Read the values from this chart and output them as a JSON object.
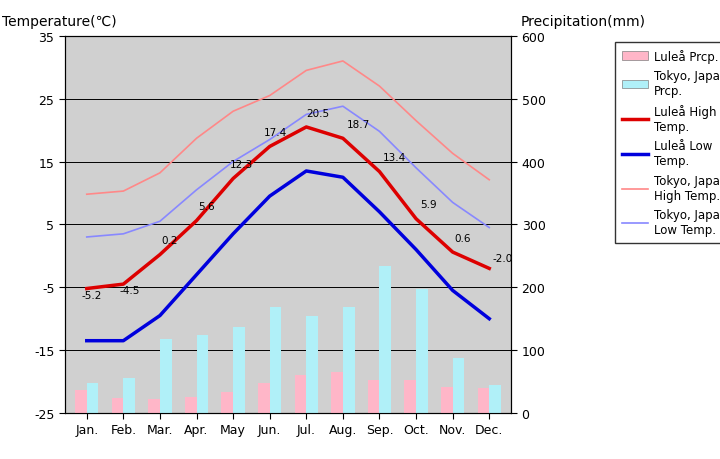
{
  "months": [
    "Jan.",
    "Feb.",
    "Mar.",
    "Apr.",
    "May",
    "Jun.",
    "Jul.",
    "Aug.",
    "Sep.",
    "Oct.",
    "Nov.",
    "Dec."
  ],
  "lulea_high": [
    -5.2,
    -4.5,
    0.2,
    5.6,
    12.3,
    17.4,
    20.5,
    18.7,
    13.4,
    5.9,
    0.6,
    -2.0
  ],
  "lulea_low": [
    -13.5,
    -13.5,
    -9.5,
    -3.0,
    3.5,
    9.5,
    13.5,
    12.5,
    7.0,
    1.0,
    -5.5,
    -10.0
  ],
  "tokyo_high": [
    9.8,
    10.3,
    13.2,
    18.7,
    23.0,
    25.5,
    29.5,
    31.0,
    27.0,
    21.5,
    16.3,
    12.1
  ],
  "tokyo_low": [
    3.0,
    3.5,
    5.5,
    10.5,
    15.0,
    18.5,
    22.5,
    23.8,
    19.8,
    14.0,
    8.5,
    4.5
  ],
  "lulea_prcp": [
    37,
    24,
    22,
    25,
    33,
    48,
    60,
    66,
    53,
    52,
    42,
    40
  ],
  "tokyo_prcp": [
    47,
    56,
    117,
    124,
    137,
    168,
    154,
    168,
    234,
    197,
    88,
    44
  ],
  "temp_ylim": [
    -25,
    35
  ],
  "prcp_ylim": [
    0,
    600
  ],
  "lulea_high_color": "#dd0000",
  "lulea_low_color": "#0000dd",
  "tokyo_high_color": "#ff8888",
  "tokyo_low_color": "#8888ff",
  "lulea_prcp_color": "#ffb6c8",
  "tokyo_prcp_color": "#b0f0f8",
  "bg_color": "#c8c8c8",
  "plot_bg": "#d0d0d0",
  "title_left": "Temperature(℃)",
  "title_right": "Precipitation(mm)",
  "label_lulea_high": "Luleå High\nTemp.",
  "label_lulea_low": "Luleå Low\nTemp.",
  "label_tokyo_high": "Tokyo, Japan\nHigh Temp.",
  "label_tokyo_low": "Tokyo, Japan\nLow Temp.",
  "label_lulea_prcp": "Luleå Prcp.",
  "label_tokyo_prcp": "Tokyo, Japan\nPrcp.",
  "lulea_high_ann": {
    "0": [
      -5.2,
      -0.15,
      -1.8
    ],
    "1": [
      -4.5,
      -0.1,
      -1.8
    ],
    "2": [
      0.2,
      0.05,
      1.5
    ],
    "3": [
      5.6,
      0.05,
      1.5
    ],
    "4": [
      12.3,
      -0.1,
      1.5
    ],
    "5": [
      17.4,
      -0.15,
      1.5
    ],
    "6": [
      20.5,
      0.0,
      1.5
    ],
    "7": [
      18.7,
      0.1,
      1.5
    ],
    "8": [
      13.4,
      0.1,
      1.5
    ],
    "9": [
      5.9,
      0.1,
      1.5
    ],
    "10": [
      0.6,
      0.05,
      1.5
    ],
    "11": [
      -2.0,
      0.1,
      0.8
    ]
  }
}
